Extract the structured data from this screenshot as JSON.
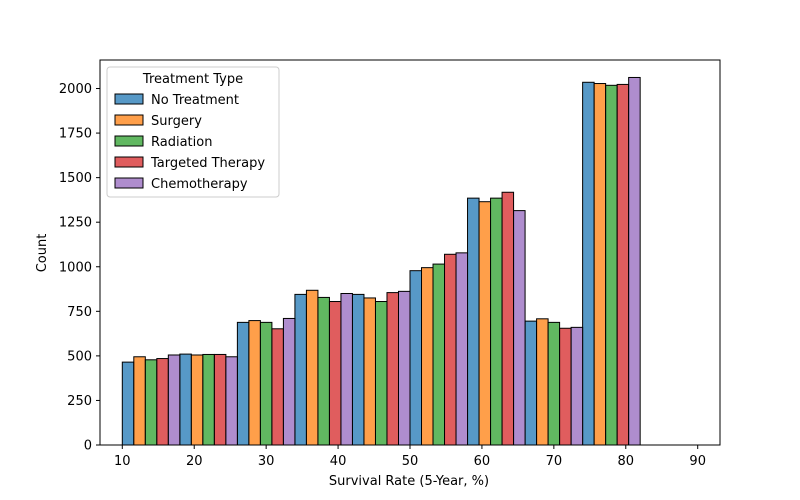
{
  "chart_data": {
    "type": "bar",
    "xlabel": "Survival Rate (5-Year, %)",
    "ylabel": "Count",
    "xlim": [
      6.9,
      93.1
    ],
    "ylim": [
      0,
      2160
    ],
    "x_ticks": [
      10,
      20,
      30,
      40,
      50,
      60,
      70,
      80,
      90
    ],
    "y_ticks": [
      0,
      250,
      500,
      750,
      1000,
      1250,
      1500,
      1750,
      2000
    ],
    "grid": false,
    "legend": {
      "title": "Treatment Type",
      "placement": "top-left"
    },
    "stat": "histogram",
    "multiple": "dodge",
    "bin_edges": [
      10,
      18,
      26,
      34,
      42,
      50,
      58,
      66,
      74,
      82,
      90
    ],
    "series": [
      {
        "name": "No Treatment",
        "color": "#1f77b4",
        "values": [
          465,
          510,
          688,
          845,
          0,
          0,
          1385,
          695,
          2035,
          0
        ]
      },
      {
        "name": "Surgery",
        "color": "#ff7f0e",
        "values": [
          495,
          505,
          698,
          868,
          0,
          995,
          1365,
          708,
          2028,
          0
        ]
      },
      {
        "name": "Radiation",
        "color": "#2ca02c",
        "values": [
          478,
          508,
          688,
          828,
          0,
          1015,
          1385,
          688,
          2018,
          0
        ]
      },
      {
        "name": "Targeted Therapy",
        "color": "#d62728",
        "values": [
          485,
          508,
          652,
          805,
          0,
          1070,
          1418,
          655,
          2023,
          0
        ]
      },
      {
        "name": "Chemotherapy",
        "color": "#9467bd",
        "values": [
          505,
          495,
          710,
          850,
          862,
          1078,
          1315,
          660,
          2062,
          0
        ]
      }
    ],
    "extra_bars": [
      {
        "series": "No Treatment",
        "bin": 4,
        "value": 845
      },
      {
        "series": "Surgery",
        "bin": 4,
        "value": 825
      },
      {
        "series": "Radiation",
        "bin": 4,
        "value": 805
      },
      {
        "series": "Targeted Therapy",
        "bin": 4,
        "value": 855
      },
      {
        "series": "No Treatment",
        "bin": 5,
        "value": 978
      }
    ]
  }
}
